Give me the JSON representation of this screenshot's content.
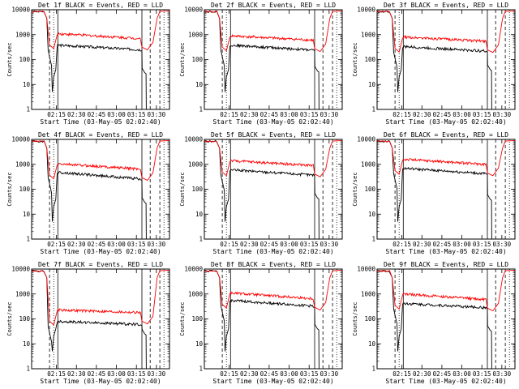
{
  "chart_data": [
    {
      "type": "line",
      "title": "Det 1f BLACK = Events, RED = LLD",
      "xlabel": "Start Time (03-May-05 02:02:40)",
      "ylabel": "Counts/sec",
      "ylog": true,
      "ylim": [
        1,
        10000
      ],
      "yticks": [
        "1",
        "10",
        "100",
        "1000",
        "10000"
      ],
      "xticks": [
        "02:15",
        "02:30",
        "02:45",
        "03:00",
        "03:15",
        "03:30"
      ],
      "series": [
        {
          "name": "Events",
          "color": "#000000",
          "start": 9000,
          "saa_level": 380,
          "end": 250,
          "tail": 30
        },
        {
          "name": "LLD",
          "color": "#ff0000",
          "start": 9000,
          "saa_level": 1100,
          "end": 700,
          "tail": 9000
        }
      ]
    },
    {
      "type": "line",
      "title": "Det 2f BLACK = Events, RED = LLD",
      "xlabel": "Start Time (03-May-05 02:02:40)",
      "ylabel": "Counts/sec",
      "ylog": true,
      "ylim": [
        1,
        10000
      ],
      "yticks": [
        "1",
        "10",
        "100",
        "1000",
        "10000"
      ],
      "xticks": [
        "02:15",
        "02:30",
        "02:45",
        "03:00",
        "03:15",
        "03:30"
      ],
      "series": [
        {
          "name": "Events",
          "color": "#000000",
          "start": 9000,
          "saa_level": 380,
          "end": 240,
          "tail": 35
        },
        {
          "name": "LLD",
          "color": "#ff0000",
          "start": 9000,
          "saa_level": 900,
          "end": 600,
          "tail": 9000
        }
      ]
    },
    {
      "type": "line",
      "title": "Det 3f BLACK = Events, RED = LLD",
      "xlabel": "Start Time (03-May-05 02:02:40)",
      "ylabel": "Counts/sec",
      "ylog": true,
      "ylim": [
        1,
        10000
      ],
      "yticks": [
        "1",
        "10",
        "100",
        "1000",
        "10000"
      ],
      "xticks": [
        "02:15",
        "02:30",
        "02:45",
        "03:00",
        "03:15",
        "03:30"
      ],
      "series": [
        {
          "name": "Events",
          "color": "#000000",
          "start": 9000,
          "saa_level": 330,
          "end": 220,
          "tail": 40
        },
        {
          "name": "LLD",
          "color": "#ff0000",
          "start": 9000,
          "saa_level": 800,
          "end": 550,
          "tail": 9000
        }
      ]
    },
    {
      "type": "line",
      "title": "Det 4f BLACK = Events, RED = LLD",
      "xlabel": "Start Time (03-May-05 02:02:40)",
      "ylabel": "Counts/sec",
      "ylog": true,
      "ylim": [
        1,
        10000
      ],
      "yticks": [
        "1",
        "10",
        "100",
        "1000",
        "10000"
      ],
      "xticks": [
        "02:15",
        "02:30",
        "02:45",
        "03:00",
        "03:15",
        "03:30"
      ],
      "series": [
        {
          "name": "Events",
          "color": "#000000",
          "start": 9000,
          "saa_level": 480,
          "end": 260,
          "tail": 30
        },
        {
          "name": "LLD",
          "color": "#ff0000",
          "start": 9000,
          "saa_level": 1050,
          "end": 650,
          "tail": 9000
        }
      ]
    },
    {
      "type": "line",
      "title": "Det 5f BLACK = Events, RED = LLD",
      "xlabel": "Start Time (03-May-05 02:02:40)",
      "ylabel": "Counts/sec",
      "ylog": true,
      "ylim": [
        1,
        10000
      ],
      "yticks": [
        "1",
        "10",
        "100",
        "1000",
        "10000"
      ],
      "xticks": [
        "02:15",
        "02:30",
        "02:45",
        "03:00",
        "03:15",
        "03:30"
      ],
      "series": [
        {
          "name": "Events",
          "color": "#000000",
          "start": 9000,
          "saa_level": 600,
          "end": 370,
          "tail": 45
        },
        {
          "name": "LLD",
          "color": "#ff0000",
          "start": 9000,
          "saa_level": 1400,
          "end": 900,
          "tail": 9000
        }
      ]
    },
    {
      "type": "line",
      "title": "Det 6f BLACK = Events, RED = LLD",
      "xlabel": "Start Time (03-May-05 02:02:40)",
      "ylabel": "Counts/sec",
      "ylog": true,
      "ylim": [
        1,
        10000
      ],
      "yticks": [
        "1",
        "10",
        "100",
        "1000",
        "10000"
      ],
      "xticks": [
        "02:15",
        "02:30",
        "02:45",
        "03:00",
        "03:15",
        "03:30"
      ],
      "series": [
        {
          "name": "Events",
          "color": "#000000",
          "start": 9000,
          "saa_level": 700,
          "end": 420,
          "tail": 40
        },
        {
          "name": "LLD",
          "color": "#ff0000",
          "start": 9000,
          "saa_level": 1600,
          "end": 1000,
          "tail": 9000
        }
      ]
    },
    {
      "type": "line",
      "title": "Det 7f BLACK = Events, RED = LLD",
      "xlabel": "Start Time (03-May-05 02:02:40)",
      "ylabel": "Counts/sec",
      "ylog": true,
      "ylim": [
        1,
        10000
      ],
      "yticks": [
        "1",
        "10",
        "100",
        "1000",
        "10000"
      ],
      "xticks": [
        "02:15",
        "02:30",
        "02:45",
        "03:00",
        "03:15",
        "03:30"
      ],
      "series": [
        {
          "name": "Events",
          "color": "#000000",
          "start": 9000,
          "saa_level": 80,
          "end": 60,
          "tail": 25
        },
        {
          "name": "LLD",
          "color": "#ff0000",
          "start": 9000,
          "saa_level": 230,
          "end": 180,
          "tail": 9000
        }
      ]
    },
    {
      "type": "line",
      "title": "Det 8f BLACK = Events, RED = LLD",
      "xlabel": "Start Time (03-May-05 02:02:40)",
      "ylabel": "Counts/sec",
      "ylog": true,
      "ylim": [
        1,
        10000
      ],
      "yticks": [
        "1",
        "10",
        "100",
        "1000",
        "10000"
      ],
      "xticks": [
        "02:15",
        "02:30",
        "02:45",
        "03:00",
        "03:15",
        "03:30"
      ],
      "series": [
        {
          "name": "Events",
          "color": "#000000",
          "start": 9000,
          "saa_level": 550,
          "end": 330,
          "tail": 40
        },
        {
          "name": "LLD",
          "color": "#ff0000",
          "start": 9000,
          "saa_level": 1100,
          "end": 650,
          "tail": 9000
        }
      ]
    },
    {
      "type": "line",
      "title": "Det 9f BLACK = Events, RED = LLD",
      "xlabel": "Start Time (03-May-05 02:02:40)",
      "ylabel": "Counts/sec",
      "ylog": true,
      "ylim": [
        1,
        10000
      ],
      "yticks": [
        "1",
        "10",
        "100",
        "1000",
        "10000"
      ],
      "xticks": [
        "02:15",
        "02:30",
        "02:45",
        "03:00",
        "03:15",
        "03:30"
      ],
      "series": [
        {
          "name": "Events",
          "color": "#000000",
          "start": 9000,
          "saa_level": 420,
          "end": 280,
          "tail": 35
        },
        {
          "name": "LLD",
          "color": "#ff0000",
          "start": 9000,
          "saa_level": 1000,
          "end": 600,
          "tail": 9000
        }
      ]
    }
  ]
}
